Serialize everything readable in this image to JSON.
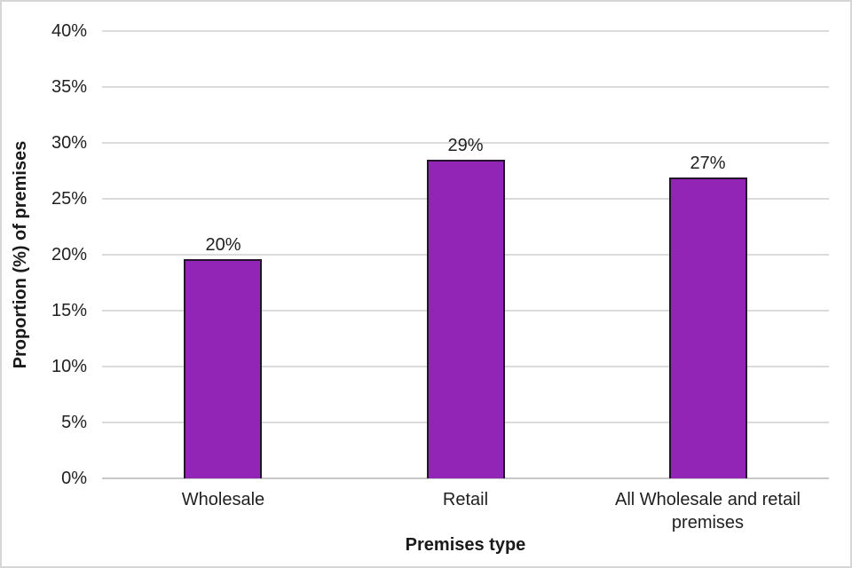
{
  "chart_data": {
    "type": "bar",
    "title": "",
    "categories": [
      "Wholesale",
      "Retail",
      "All Wholesale and retail premises"
    ],
    "values": [
      19.6,
      28.5,
      26.9
    ],
    "value_labels": [
      "20%",
      "29%",
      "27%"
    ],
    "xlabel": "Premises type",
    "ylabel": "Proportion (%) of premises",
    "ylim": [
      0,
      40
    ],
    "ytick_step": 5,
    "yticks": [
      "0%",
      "5%",
      "10%",
      "15%",
      "20%",
      "25%",
      "30%",
      "35%",
      "40%"
    ],
    "ytick_values": [
      0,
      5,
      10,
      15,
      20,
      25,
      30,
      35,
      40
    ],
    "grid": "horizontal",
    "legend": "none",
    "bar_fill_color": "#9225b5",
    "bar_border_color": "#24142e",
    "gridline_color": "#dbdbdb",
    "text_color": "#212121"
  }
}
